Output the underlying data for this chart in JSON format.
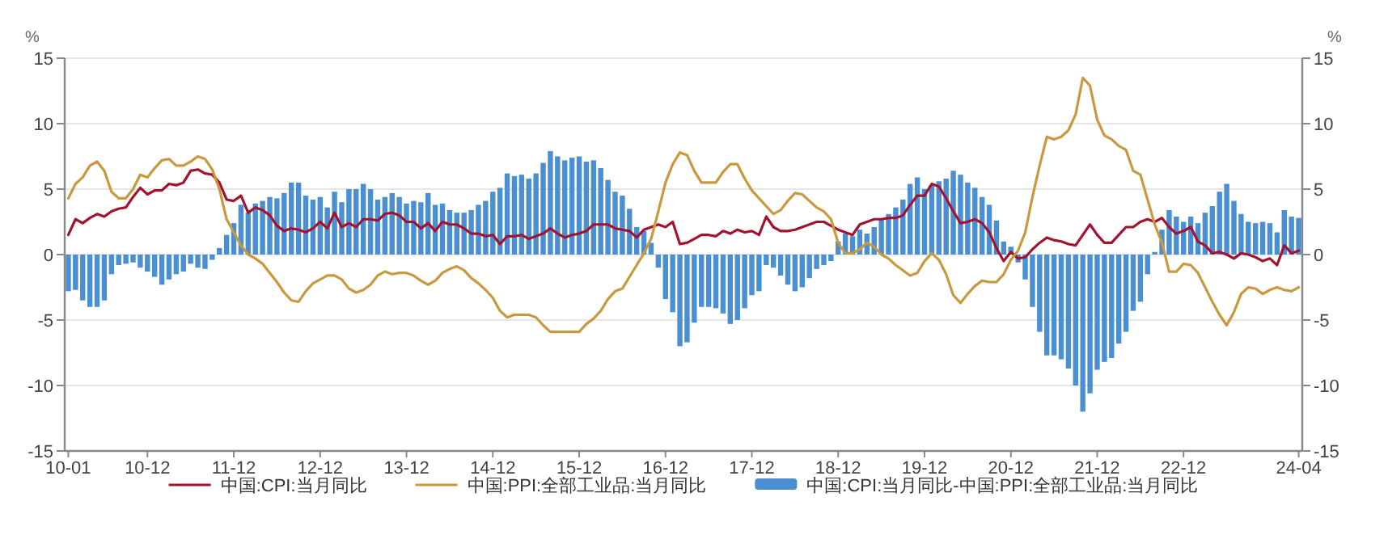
{
  "chart_data": {
    "type": "line",
    "categories": [
      "10-01",
      null,
      null,
      null,
      null,
      null,
      null,
      null,
      null,
      null,
      null,
      "10-12",
      null,
      null,
      null,
      null,
      null,
      null,
      null,
      null,
      null,
      null,
      null,
      "11-12",
      null,
      null,
      null,
      null,
      null,
      null,
      null,
      null,
      null,
      null,
      null,
      "12-12",
      null,
      null,
      null,
      null,
      null,
      null,
      null,
      null,
      null,
      null,
      null,
      "13-12",
      null,
      null,
      null,
      null,
      null,
      null,
      null,
      null,
      null,
      null,
      null,
      "14-12",
      null,
      null,
      null,
      null,
      null,
      null,
      null,
      null,
      null,
      null,
      null,
      "15-12",
      null,
      null,
      null,
      null,
      null,
      null,
      null,
      null,
      null,
      null,
      null,
      "16-12",
      null,
      null,
      null,
      null,
      null,
      null,
      null,
      null,
      null,
      null,
      null,
      "17-12",
      null,
      null,
      null,
      null,
      null,
      null,
      null,
      null,
      null,
      null,
      null,
      "18-12",
      null,
      null,
      null,
      null,
      null,
      null,
      null,
      null,
      null,
      null,
      null,
      "19-12",
      null,
      null,
      null,
      null,
      null,
      null,
      null,
      null,
      null,
      null,
      null,
      "20-12",
      null,
      null,
      null,
      null,
      null,
      null,
      null,
      null,
      null,
      null,
      null,
      "21-12",
      null,
      null,
      null,
      null,
      null,
      null,
      null,
      null,
      null,
      null,
      null,
      "22-12",
      null,
      null,
      null,
      null,
      null,
      null,
      null,
      null,
      null,
      null,
      null,
      null,
      null,
      null,
      null,
      "24-04"
    ],
    "series": [
      {
        "name": "中国:CPI:当月同比",
        "color": "#a3122f",
        "values": [
          1.5,
          2.7,
          2.4,
          2.8,
          3.1,
          2.9,
          3.3,
          3.5,
          3.6,
          4.4,
          5.1,
          4.6,
          4.9,
          4.9,
          5.4,
          5.3,
          5.5,
          6.4,
          6.5,
          6.2,
          6.1,
          5.5,
          4.2,
          4.1,
          4.5,
          3.2,
          3.6,
          3.4,
          3.0,
          2.2,
          1.8,
          2.0,
          1.9,
          1.7,
          2.0,
          2.5,
          2.0,
          3.2,
          2.1,
          2.4,
          2.1,
          2.7,
          2.7,
          2.6,
          3.1,
          3.2,
          3.0,
          2.5,
          2.5,
          2.0,
          2.4,
          1.8,
          2.5,
          2.3,
          2.3,
          2.0,
          1.6,
          1.6,
          1.4,
          1.5,
          0.8,
          1.4,
          1.4,
          1.5,
          1.2,
          1.4,
          1.6,
          2.0,
          1.6,
          1.3,
          1.5,
          1.6,
          1.8,
          2.3,
          2.3,
          2.3,
          2.0,
          1.9,
          1.8,
          1.3,
          1.9,
          2.1,
          2.3,
          2.1,
          2.5,
          0.8,
          0.9,
          1.2,
          1.5,
          1.5,
          1.4,
          1.8,
          1.6,
          1.9,
          1.7,
          1.8,
          1.5,
          2.9,
          2.1,
          1.8,
          1.8,
          1.9,
          2.1,
          2.3,
          2.5,
          2.5,
          2.2,
          1.9,
          1.7,
          1.5,
          2.3,
          2.5,
          2.7,
          2.7,
          2.8,
          2.8,
          3.0,
          3.8,
          4.5,
          4.5,
          5.4,
          5.2,
          4.3,
          3.3,
          2.4,
          2.5,
          2.7,
          2.4,
          1.7,
          0.5,
          -0.5,
          0.2,
          -0.3,
          -0.2,
          0.4,
          0.9,
          1.3,
          1.1,
          1.0,
          0.8,
          0.7,
          1.5,
          2.3,
          1.5,
          0.9,
          0.9,
          1.5,
          2.1,
          2.1,
          2.5,
          2.7,
          2.5,
          2.8,
          2.1,
          1.6,
          1.8,
          2.1,
          1.0,
          0.7,
          0.1,
          0.2,
          0.0,
          -0.3,
          0.1,
          0.0,
          -0.2,
          -0.5,
          -0.3,
          -0.8,
          0.7,
          0.1,
          0.3
        ]
      },
      {
        "name": "中国:PPI:全部工业品:当月同比",
        "color": "#c9983f",
        "values": [
          4.3,
          5.4,
          5.9,
          6.8,
          7.1,
          6.4,
          4.8,
          4.3,
          4.3,
          5.0,
          6.1,
          5.9,
          6.6,
          7.2,
          7.3,
          6.8,
          6.8,
          7.1,
          7.5,
          7.3,
          6.5,
          5.0,
          2.7,
          1.7,
          0.7,
          0.0,
          -0.3,
          -0.7,
          -1.4,
          -2.1,
          -2.9,
          -3.5,
          -3.6,
          -2.8,
          -2.2,
          -1.9,
          -1.6,
          -1.6,
          -1.9,
          -2.6,
          -2.9,
          -2.7,
          -2.3,
          -1.6,
          -1.3,
          -1.5,
          -1.4,
          -1.4,
          -1.6,
          -2.0,
          -2.3,
          -2.0,
          -1.4,
          -1.1,
          -0.9,
          -1.2,
          -1.8,
          -2.2,
          -2.7,
          -3.3,
          -4.3,
          -4.8,
          -4.6,
          -4.6,
          -4.6,
          -4.8,
          -5.4,
          -5.9,
          -5.9,
          -5.9,
          -5.9,
          -5.9,
          -5.3,
          -4.9,
          -4.3,
          -3.4,
          -2.8,
          -2.6,
          -1.7,
          -0.8,
          0.1,
          1.2,
          3.3,
          5.5,
          6.9,
          7.8,
          7.6,
          6.4,
          5.5,
          5.5,
          5.5,
          6.3,
          6.9,
          6.9,
          5.8,
          4.9,
          4.3,
          3.7,
          3.1,
          3.4,
          4.1,
          4.7,
          4.6,
          4.1,
          3.6,
          3.3,
          2.7,
          0.9,
          0.1,
          0.1,
          0.4,
          0.9,
          0.6,
          0.0,
          -0.3,
          -0.8,
          -1.2,
          -1.6,
          -1.4,
          -0.5,
          0.1,
          -0.4,
          -1.5,
          -3.1,
          -3.7,
          -3.0,
          -2.4,
          -2.0,
          -2.1,
          -2.1,
          -1.5,
          -0.4,
          0.3,
          1.7,
          4.4,
          6.8,
          9.0,
          8.8,
          9.0,
          9.5,
          10.7,
          13.5,
          12.9,
          10.3,
          9.1,
          8.8,
          8.3,
          8.0,
          6.4,
          6.1,
          4.2,
          2.3,
          0.9,
          -1.3,
          -1.3,
          -0.7,
          -0.8,
          -1.4,
          -2.5,
          -3.6,
          -4.6,
          -5.4,
          -4.4,
          -3.0,
          -2.5,
          -2.6,
          -3.0,
          -2.7,
          -2.5,
          -2.7,
          -2.8,
          -2.5
        ]
      },
      {
        "name": "中国:CPI:当月同比-中国:PPI:全部工业品:当月同比",
        "type": "bar",
        "color": "#4a8fd2",
        "values": [
          -2.8,
          -2.7,
          -3.5,
          -4.0,
          -4.0,
          -3.5,
          -1.5,
          -0.8,
          -0.7,
          -0.6,
          -1.0,
          -1.3,
          -1.7,
          -2.3,
          -1.9,
          -1.5,
          -1.3,
          -0.7,
          -1.0,
          -1.1,
          -0.4,
          0.5,
          1.5,
          2.4,
          3.8,
          3.2,
          3.9,
          4.1,
          4.4,
          4.3,
          4.7,
          5.5,
          5.5,
          4.5,
          4.2,
          4.4,
          3.6,
          4.8,
          4.0,
          5.0,
          5.0,
          5.4,
          5.0,
          4.2,
          4.4,
          4.7,
          4.4,
          3.9,
          4.1,
          4.0,
          4.7,
          3.8,
          3.9,
          3.4,
          3.2,
          3.2,
          3.4,
          3.8,
          4.1,
          4.8,
          5.1,
          6.2,
          6.0,
          6.1,
          5.8,
          6.2,
          7.0,
          7.9,
          7.5,
          7.2,
          7.4,
          7.5,
          7.1,
          7.2,
          6.6,
          5.7,
          4.8,
          4.5,
          3.5,
          2.1,
          1.8,
          0.9,
          -1.0,
          -3.4,
          -4.4,
          -7.0,
          -6.7,
          -5.2,
          -4.0,
          -4.0,
          -4.1,
          -4.5,
          -5.3,
          -5.0,
          -4.1,
          -3.1,
          -2.8,
          -0.8,
          -1.0,
          -1.6,
          -2.3,
          -2.8,
          -2.5,
          -1.8,
          -1.1,
          -0.8,
          -0.5,
          1.0,
          1.6,
          1.4,
          1.9,
          1.6,
          2.1,
          2.7,
          3.1,
          3.6,
          4.2,
          5.4,
          5.9,
          5.0,
          5.3,
          5.6,
          5.8,
          6.4,
          6.1,
          5.5,
          5.1,
          4.4,
          3.8,
          2.6,
          1.0,
          0.6,
          -0.6,
          -1.9,
          -4.0,
          -5.9,
          -7.7,
          -7.7,
          -8.0,
          -8.7,
          -10.0,
          -12.0,
          -10.6,
          -8.8,
          -8.2,
          -7.9,
          -6.8,
          -5.9,
          -4.3,
          -3.6,
          -1.5,
          0.2,
          1.9,
          3.4,
          2.9,
          2.5,
          2.9,
          2.4,
          3.2,
          3.7,
          4.8,
          5.4,
          4.1,
          3.1,
          2.5,
          2.4,
          2.5,
          2.4,
          1.7,
          3.4,
          2.9,
          2.8
        ]
      }
    ],
    "ylabel": "%",
    "y2label": "%",
    "ylim": [
      -15,
      15
    ],
    "yticks": [
      -15,
      -10,
      -5,
      0,
      5,
      10,
      15
    ],
    "y2lim": [
      -15,
      15
    ],
    "y2ticks": [
      -15,
      -10,
      -5,
      0,
      5,
      10,
      15
    ],
    "grid": "y",
    "legend": "bottom",
    "line_style": "solid",
    "marker": "none"
  }
}
